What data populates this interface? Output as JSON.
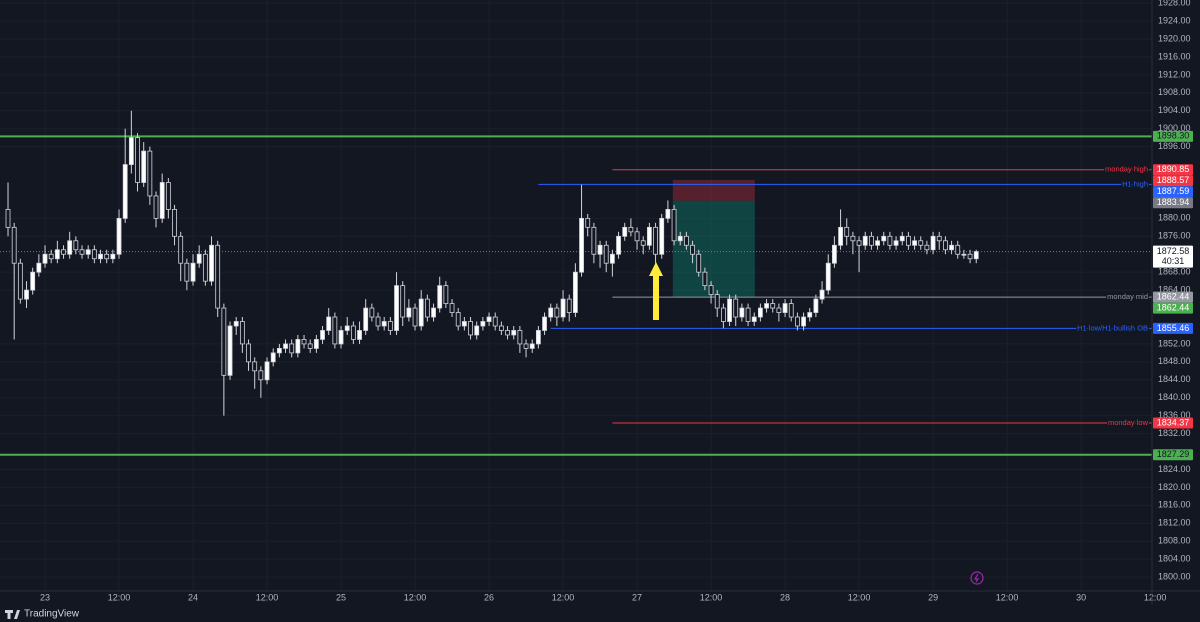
{
  "chart_data": {
    "type": "candlestick",
    "brand": "TradingView",
    "x": [
      -6,
      -5,
      -4,
      -3,
      -2,
      -1,
      0,
      1,
      2,
      3,
      4,
      5,
      6,
      7,
      8,
      9,
      10,
      11,
      12,
      13,
      14,
      15,
      16,
      17,
      18,
      19,
      20,
      21,
      22,
      23,
      24,
      25,
      26,
      27,
      28,
      29,
      30,
      31,
      32,
      33,
      34,
      35,
      36,
      37,
      38,
      39,
      40,
      41,
      42,
      43,
      44,
      45,
      46,
      47,
      48,
      49,
      50,
      51,
      52,
      53,
      54,
      55,
      56,
      57,
      58,
      59,
      60,
      61,
      62,
      63,
      64,
      65,
      66,
      67,
      68,
      69,
      70,
      71,
      72,
      73,
      74,
      75,
      76,
      77,
      78,
      79,
      80,
      81,
      82,
      83,
      84,
      85,
      86,
      87,
      88,
      89,
      90,
      91,
      92,
      93,
      94,
      95,
      96,
      97,
      98,
      99,
      100,
      101,
      102,
      103,
      104,
      105,
      106,
      107,
      108,
      109,
      110,
      111,
      112,
      113,
      114,
      115,
      116,
      117,
      118,
      119,
      120,
      121,
      122,
      123,
      124,
      125,
      126,
      127,
      128,
      129,
      130,
      131,
      132,
      133,
      134,
      135,
      136,
      137,
      138,
      139,
      140,
      141,
      142,
      143,
      144,
      145,
      146,
      147,
      148,
      149,
      150,
      151
    ],
    "open": [
      1882,
      1878,
      1870,
      1862,
      1864,
      1868,
      1870,
      1872,
      1871,
      1873,
      1872,
      1875,
      1873,
      1872,
      1873,
      1871,
      1872,
      1871,
      1872,
      1880,
      1892,
      1898,
      1888,
      1895,
      1885,
      1880,
      1888,
      1882,
      1876,
      1870,
      1866,
      1870,
      1872,
      1866,
      1874,
      1860,
      1845,
      1856,
      1857,
      1852,
      1848,
      1846,
      1844,
      1848,
      1850,
      1851,
      1852,
      1850,
      1853,
      1852,
      1851,
      1853,
      1855,
      1858,
      1852,
      1855,
      1856,
      1853,
      1855,
      1860,
      1858,
      1856,
      1857,
      1855,
      1865,
      1858,
      1860,
      1856,
      1862,
      1858,
      1860,
      1865,
      1861,
      1859,
      1856,
      1857,
      1854,
      1856,
      1857,
      1858,
      1856,
      1855,
      1854,
      1855,
      1852,
      1851,
      1852,
      1855,
      1858,
      1860,
      1858,
      1862,
      1859,
      1868,
      1880,
      1878,
      1872,
      1874,
      1870,
      1872,
      1876,
      1878,
      1877,
      1875,
      1874,
      1878,
      1872,
      1880,
      1882,
      1875,
      1876,
      1874,
      1872,
      1868,
      1865,
      1863,
      1860,
      1857,
      1862,
      1858,
      1860,
      1857,
      1858,
      1860,
      1861,
      1860,
      1859,
      1861,
      1858,
      1856,
      1858,
      1859,
      1862,
      1864,
      1870,
      1874,
      1878,
      1876,
      1875,
      1874,
      1876,
      1874,
      1875,
      1876,
      1874,
      1875,
      1876,
      1874,
      1875,
      1874,
      1873,
      1876,
      1875,
      1873,
      1874,
      1872,
      1872,
      1871
    ],
    "high": [
      1888,
      1879,
      1871,
      1866,
      1869,
      1872,
      1874,
      1873,
      1875,
      1874,
      1877,
      1876,
      1874,
      1874,
      1874,
      1873,
      1873,
      1873,
      1882,
      1900,
      1904,
      1899,
      1897,
      1896,
      1886,
      1890,
      1889,
      1883,
      1877,
      1871,
      1872,
      1874,
      1873,
      1876,
      1875,
      1861,
      1857,
      1858,
      1858,
      1853,
      1849,
      1847,
      1849,
      1851,
      1852,
      1853,
      1853,
      1854,
      1854,
      1853,
      1854,
      1856,
      1860,
      1859,
      1856,
      1858,
      1857,
      1857,
      1862,
      1861,
      1859,
      1858,
      1858,
      1868,
      1866,
      1862,
      1861,
      1864,
      1863,
      1861,
      1867,
      1866,
      1862,
      1860,
      1858,
      1858,
      1857,
      1858,
      1859,
      1859,
      1857,
      1856,
      1856,
      1856,
      1853,
      1853,
      1856,
      1859,
      1861,
      1861,
      1864,
      1863,
      1870,
      1887.5,
      1881,
      1879,
      1875,
      1875,
      1873,
      1877,
      1879,
      1880,
      1878,
      1876,
      1879,
      1879,
      1881,
      1884,
      1883,
      1877,
      1877,
      1875,
      1873,
      1869,
      1866,
      1864,
      1861,
      1863,
      1863,
      1861,
      1861,
      1859,
      1861,
      1862,
      1862,
      1861,
      1862,
      1862,
      1859,
      1859,
      1860,
      1863,
      1866,
      1872,
      1876,
      1882,
      1880,
      1877,
      1876,
      1877,
      1877,
      1876,
      1877,
      1877,
      1876,
      1877,
      1877,
      1876,
      1876,
      1875,
      1877,
      1877,
      1876,
      1875,
      1875,
      1873,
      1873,
      1873
    ],
    "low": [
      1876,
      1853,
      1861,
      1860,
      1863,
      1867,
      1869,
      1870,
      1870,
      1871,
      1871,
      1872,
      1871,
      1871,
      1870,
      1870,
      1870,
      1870,
      1871,
      1879,
      1890,
      1886,
      1887,
      1883,
      1878,
      1879,
      1880,
      1874,
      1866,
      1864,
      1865,
      1869,
      1865,
      1865,
      1858,
      1836,
      1844,
      1854,
      1850,
      1846,
      1842,
      1840,
      1843,
      1847,
      1849,
      1850,
      1849,
      1849,
      1851,
      1850,
      1850,
      1852,
      1854,
      1851,
      1851,
      1854,
      1852,
      1852,
      1854,
      1857,
      1855,
      1855,
      1854,
      1854,
      1856,
      1857,
      1855,
      1855,
      1857,
      1857,
      1859,
      1860,
      1858,
      1855,
      1855,
      1853,
      1853,
      1855,
      1856,
      1855,
      1854,
      1853,
      1853,
      1850,
      1849,
      1850,
      1851,
      1854,
      1857,
      1856,
      1857,
      1857,
      1858,
      1867,
      1876,
      1870,
      1869,
      1868,
      1867,
      1871,
      1875,
      1876,
      1873,
      1872,
      1873,
      1866,
      1871,
      1879,
      1874,
      1874,
      1873,
      1870,
      1867,
      1864,
      1861,
      1858,
      1855.5,
      1856,
      1856,
      1857,
      1856,
      1856,
      1857,
      1859,
      1859,
      1857,
      1858,
      1857,
      1855,
      1855,
      1857,
      1858,
      1861,
      1863,
      1869,
      1873,
      1874,
      1872,
      1868,
      1873,
      1873,
      1873,
      1874,
      1873,
      1873,
      1874,
      1873,
      1873,
      1873,
      1872,
      1872,
      1873,
      1872,
      1872,
      1871,
      1871,
      1870,
      1870
    ],
    "close": [
      1878,
      1870,
      1862,
      1864,
      1868,
      1870,
      1872,
      1871,
      1873,
      1872,
      1875,
      1873,
      1872,
      1873,
      1871,
      1872,
      1871,
      1872,
      1880,
      1892,
      1898,
      1888,
      1895,
      1885,
      1880,
      1888,
      1882,
      1876,
      1870,
      1866,
      1870,
      1872,
      1866,
      1874,
      1860,
      1845,
      1856,
      1857,
      1852,
      1848,
      1846,
      1844,
      1848,
      1850,
      1851,
      1852,
      1850,
      1853,
      1852,
      1851,
      1853,
      1855,
      1858,
      1852,
      1855,
      1856,
      1853,
      1855,
      1860,
      1858,
      1856,
      1857,
      1855,
      1865,
      1858,
      1860,
      1856,
      1862,
      1858,
      1860,
      1865,
      1861,
      1859,
      1856,
      1857,
      1854,
      1856,
      1857,
      1858,
      1856,
      1855,
      1854,
      1855,
      1852,
      1851,
      1852,
      1855,
      1858,
      1860,
      1858,
      1862,
      1859,
      1868,
      1880,
      1878,
      1872,
      1874,
      1870,
      1872,
      1876,
      1878,
      1877,
      1875,
      1874,
      1878,
      1872,
      1880,
      1882,
      1875,
      1876,
      1874,
      1872,
      1868,
      1865,
      1863,
      1860,
      1857,
      1862,
      1858,
      1860,
      1857,
      1858,
      1860,
      1861,
      1860,
      1859,
      1861,
      1858,
      1856,
      1858,
      1859,
      1862,
      1864,
      1870,
      1874,
      1878,
      1876,
      1875,
      1874,
      1876,
      1874,
      1875,
      1876,
      1874,
      1875,
      1876,
      1874,
      1875,
      1874,
      1873,
      1876,
      1875,
      1873,
      1874,
      1872,
      1872,
      1871,
      1872.58
    ],
    "up_color": "#ffffff",
    "down_color": "#131722",
    "wick_color": "#d1d4dc",
    "xlim": [
      -7.3,
      179.5
    ],
    "ylim": [
      1796.9,
      1928.7
    ],
    "grid": true,
    "xticks": [
      {
        "value": 0,
        "label": "23"
      },
      {
        "value": 12,
        "label": "12:00"
      },
      {
        "value": 24,
        "label": "24"
      },
      {
        "value": 36,
        "label": "12:00"
      },
      {
        "value": 48,
        "label": "25"
      },
      {
        "value": 60,
        "label": "12:00"
      },
      {
        "value": 72,
        "label": "26"
      },
      {
        "value": 84,
        "label": "12:00"
      },
      {
        "value": 96,
        "label": "27"
      },
      {
        "value": 108,
        "label": "12:00"
      },
      {
        "value": 120,
        "label": "28"
      },
      {
        "value": 132,
        "label": "12:00"
      },
      {
        "value": 144,
        "label": "29"
      },
      {
        "value": 156,
        "label": "12:00"
      },
      {
        "value": 168,
        "label": "30"
      },
      {
        "value": 180,
        "label": "12:00"
      }
    ],
    "yticks": [
      {
        "value": 1928,
        "label": "1928.00"
      },
      {
        "value": 1924,
        "label": "1924.00"
      },
      {
        "value": 1920,
        "label": "1920.00"
      },
      {
        "value": 1916,
        "label": "1916.00"
      },
      {
        "value": 1912,
        "label": "1912.00"
      },
      {
        "value": 1908,
        "label": "1908.00"
      },
      {
        "value": 1904,
        "label": "1904.00"
      },
      {
        "value": 1900,
        "label": "1900.00"
      },
      {
        "value": 1896,
        "label": "1896.00"
      },
      {
        "value": 1880,
        "label": "1880.00"
      },
      {
        "value": 1876,
        "label": "1876.00"
      },
      {
        "value": 1868,
        "label": "1868.00"
      },
      {
        "value": 1864,
        "label": "1864.00"
      },
      {
        "value": 1852,
        "label": "1852.00"
      },
      {
        "value": 1848,
        "label": "1848.00"
      },
      {
        "value": 1844,
        "label": "1844.00"
      },
      {
        "value": 1840,
        "label": "1840.00"
      },
      {
        "value": 1836,
        "label": "1836.00"
      },
      {
        "value": 1832,
        "label": "1832.00"
      },
      {
        "value": 1824,
        "label": "1824.00"
      },
      {
        "value": 1820,
        "label": "1820.00"
      },
      {
        "value": 1816,
        "label": "1816.00"
      },
      {
        "value": 1812,
        "label": "1812.00"
      },
      {
        "value": 1808,
        "label": "1808.00"
      },
      {
        "value": 1804,
        "label": "1804.00"
      },
      {
        "value": 1800,
        "label": "1800.00"
      }
    ],
    "levels": [
      {
        "value": 1898.3,
        "label": "1898.30",
        "color": "#4caf50"
      },
      {
        "name": "monday high",
        "value": 1890.85,
        "label": "1890.85",
        "color": "#f23645",
        "from": 92
      },
      {
        "name": "H1 high",
        "value": 1887.59,
        "label": "1887.59",
        "color": "#2962ff",
        "from": 80
      },
      {
        "name": "monday mid",
        "value": 1862.44,
        "label": "1862.44",
        "color": "#9598a1",
        "from": 92
      },
      {
        "name": "H1 low/H1 bullish OB",
        "value": 1855.46,
        "label": "1855.46",
        "color": "#2962ff",
        "from": 82
      },
      {
        "name": "monday low",
        "value": 1834.37,
        "label": "1834.37",
        "color": "#f23645",
        "from": 92
      },
      {
        "value": 1827.29,
        "label": "1827.29",
        "color": "#4caf50"
      }
    ],
    "position": {
      "x": [
        101.8,
        115.1
      ],
      "stop": {
        "value": 1888.57,
        "label": "1888.57",
        "color": "#f23645"
      },
      "entry": {
        "value": 1883.94,
        "label": "1883.94",
        "color": "#787b86"
      },
      "target": {
        "value": 1862.44,
        "label": "1862.44",
        "color": "#4caf50"
      }
    },
    "last_price": {
      "value": 1872.58,
      "label": "1872.58",
      "countdown": "40:31"
    }
  }
}
